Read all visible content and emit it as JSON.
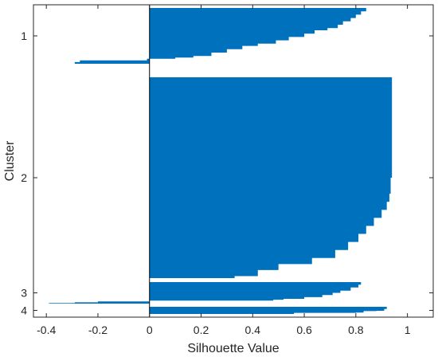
{
  "chart_data": {
    "type": "bar",
    "orientation": "horizontal",
    "xlabel": "Silhouette Value",
    "ylabel": "Cluster",
    "xlim": [
      -0.45,
      1.1
    ],
    "x_ticks": [
      -0.4,
      -0.2,
      0,
      0.2,
      0.4,
      0.6,
      0.8,
      1
    ],
    "x_tick_labels": [
      "-0.4",
      "-0.2",
      "0",
      "0.2",
      "0.4",
      "0.6",
      "0.8",
      "1"
    ],
    "bar_color": "#0072BD",
    "grid": false,
    "clusters": [
      {
        "label": "1",
        "profile": [
          [
            0,
            0.84
          ],
          [
            0.06,
            0.82
          ],
          [
            0.12,
            0.8
          ],
          [
            0.18,
            0.78
          ],
          [
            0.24,
            0.75
          ],
          [
            0.3,
            0.73
          ],
          [
            0.36,
            0.69
          ],
          [
            0.4,
            0.64
          ],
          [
            0.46,
            0.6
          ],
          [
            0.52,
            0.54
          ],
          [
            0.58,
            0.49
          ],
          [
            0.64,
            0.42
          ],
          [
            0.68,
            0.36
          ],
          [
            0.74,
            0.3
          ],
          [
            0.8,
            0.24
          ],
          [
            0.86,
            0.17
          ],
          [
            0.89,
            0.1
          ],
          [
            0.91,
            -0.01
          ],
          [
            0.94,
            -0.27
          ],
          [
            0.97,
            -0.29
          ],
          [
            1.0,
            -0.41
          ]
        ]
      },
      {
        "label": "2",
        "profile": [
          [
            0,
            0.94
          ],
          [
            0.3,
            0.94
          ],
          [
            0.5,
            0.935
          ],
          [
            0.58,
            0.93
          ],
          [
            0.62,
            0.92
          ],
          [
            0.66,
            0.9
          ],
          [
            0.7,
            0.87
          ],
          [
            0.74,
            0.84
          ],
          [
            0.78,
            0.81
          ],
          [
            0.82,
            0.77
          ],
          [
            0.86,
            0.72
          ],
          [
            0.9,
            0.63
          ],
          [
            0.93,
            0.5
          ],
          [
            0.96,
            0.42
          ],
          [
            0.99,
            0.33
          ],
          [
            1.0,
            0.3
          ]
        ]
      },
      {
        "label": "3",
        "profile": [
          [
            0,
            0.82
          ],
          [
            0.12,
            0.81
          ],
          [
            0.25,
            0.78
          ],
          [
            0.4,
            0.74
          ],
          [
            0.5,
            0.71
          ],
          [
            0.6,
            0.67
          ],
          [
            0.7,
            0.6
          ],
          [
            0.78,
            0.52
          ],
          [
            0.82,
            0.48
          ],
          [
            0.86,
            0.0
          ],
          [
            0.9,
            -0.2
          ],
          [
            0.94,
            -0.29
          ],
          [
            0.97,
            -0.39
          ],
          [
            1.0,
            -0.4
          ]
        ]
      },
      {
        "label": "4",
        "profile": [
          [
            0,
            0.92
          ],
          [
            0.3,
            0.91
          ],
          [
            0.55,
            0.88
          ],
          [
            0.6,
            0.83
          ],
          [
            0.8,
            0.8
          ],
          [
            0.85,
            0.56
          ],
          [
            1.0,
            0.56
          ]
        ]
      }
    ]
  }
}
